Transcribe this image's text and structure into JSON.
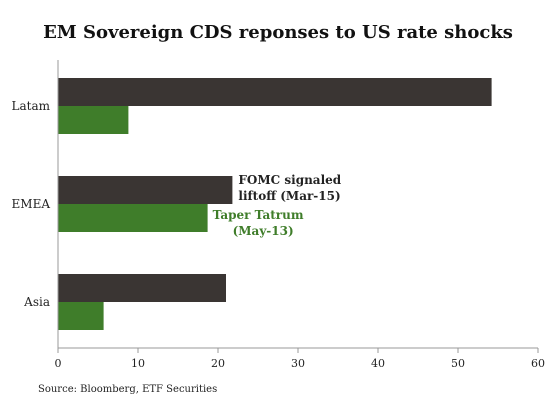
{
  "chart_data": {
    "type": "bar",
    "orientation": "horizontal",
    "title": "EM Sovereign CDS reponses to US rate shocks",
    "categories": [
      "Latam",
      "EMEA",
      "Asia"
    ],
    "series": [
      {
        "name": "FOMC signaled liftoff (Mar-15)",
        "color": "#3a3533",
        "values": [
          54.2,
          21.8,
          21.0
        ]
      },
      {
        "name": "Taper Tatrum (May-13)",
        "color": "#3f7d2a",
        "values": [
          8.8,
          18.7,
          5.7
        ]
      }
    ],
    "xlim": [
      0,
      60
    ],
    "xticks": [
      0,
      10,
      20,
      30,
      40,
      50,
      60
    ],
    "annotations": [
      {
        "lines": [
          "FOMC signaled",
          "liftoff (Mar-15)"
        ],
        "color": "#222222"
      },
      {
        "lines": [
          "Taper Tatrum",
          "(May-13)"
        ],
        "color": "#3f7d2a"
      }
    ],
    "source": "Source: Bloomberg, ETF Securities",
    "grid": false,
    "legend": "none"
  }
}
